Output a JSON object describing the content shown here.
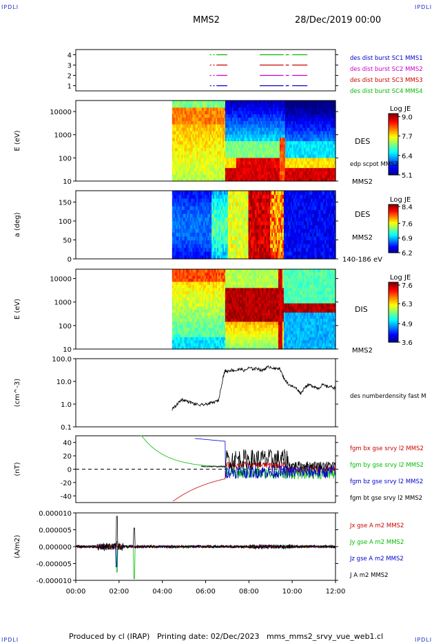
{
  "header": {
    "corner_label": "IPDLI",
    "spacecraft": "MMS2",
    "datetime": "28/Dec/2019 00:00"
  },
  "footer": {
    "text": "Produced by cl (IRAP)   Printing date: 02/Dec/2023   mms_mms2_srvy_vue_web1.cl"
  },
  "chart_data": [
    {
      "type": "scatter",
      "panel": "burst-availability",
      "xlim": [
        0,
        12
      ],
      "ylim": [
        0.5,
        4.5
      ],
      "yticks": [
        "1",
        "2",
        "3",
        "4"
      ],
      "legend": [
        {
          "label": "des dist burst SC1 MMS1",
          "color": "#0000cc"
        },
        {
          "label": "des dist burst SC2 MMS2",
          "color": "#cc00cc"
        },
        {
          "label": "des dist burst SC3 MMS3",
          "color": "#cc0000"
        },
        {
          "label": "des dist burst SC4 MMS4",
          "color": "#00bb00"
        }
      ],
      "series": [
        {
          "y": 4,
          "color": "#00bb00",
          "intervals": [
            [
              6.2,
              6.25
            ],
            [
              6.35,
              6.35
            ],
            [
              6.5,
              7.0
            ],
            [
              8.5,
              9.6
            ],
            [
              9.7,
              9.85
            ],
            [
              10.0,
              10.7
            ]
          ]
        },
        {
          "y": 3,
          "color": "#cc0000",
          "intervals": [
            [
              6.2,
              6.25
            ],
            [
              6.35,
              6.35
            ],
            [
              6.5,
              7.0
            ],
            [
              8.5,
              9.6
            ],
            [
              9.7,
              9.85
            ],
            [
              10.0,
              10.7
            ]
          ]
        },
        {
          "y": 2,
          "color": "#cc00cc",
          "intervals": [
            [
              6.2,
              6.25
            ],
            [
              6.35,
              6.35
            ],
            [
              6.5,
              7.0
            ],
            [
              8.5,
              9.6
            ],
            [
              9.7,
              9.85
            ],
            [
              10.0,
              10.7
            ]
          ]
        },
        {
          "y": 1,
          "color": "#0000cc",
          "intervals": [
            [
              6.2,
              6.25
            ],
            [
              6.35,
              6.35
            ],
            [
              6.5,
              7.0
            ],
            [
              8.5,
              9.6
            ],
            [
              9.7,
              9.85
            ],
            [
              10.0,
              10.7
            ]
          ]
        }
      ]
    },
    {
      "type": "heatmap",
      "panel": "des-energy",
      "ylabel": "E (eV)",
      "ylog": true,
      "ylim": [
        10,
        30000
      ],
      "yticks": [
        "10",
        "100",
        "1000",
        "10000"
      ],
      "data_start": 4.45,
      "label_right": "DES",
      "extra_label": "edp scpot MMS2",
      "spacecraft_label": "MMS2",
      "colorbar": {
        "title": "Log JE",
        "ticks": [
          "9.0",
          "7.7",
          "6.4",
          "5.1"
        ],
        "min": 5.1,
        "max": 9.2
      }
    },
    {
      "type": "heatmap",
      "panel": "des-pitch-angle",
      "ylabel": "a (deg)",
      "ylim": [
        0,
        180
      ],
      "yticks": [
        "0",
        "50",
        "100",
        "150"
      ],
      "data_start": 4.45,
      "label_right": "DES",
      "spacecraft_label": "MMS2",
      "energy_label": "140-186 eV",
      "colorbar": {
        "title": "Log JE",
        "ticks": [
          "8.4",
          "7.6",
          "6.9",
          "6.2"
        ],
        "min": 6.2,
        "max": 8.5
      }
    },
    {
      "type": "heatmap",
      "panel": "dis-energy",
      "ylabel": "E (eV)",
      "ylog": true,
      "ylim": [
        10,
        25000
      ],
      "yticks": [
        "10",
        "100",
        "1000",
        "10000"
      ],
      "data_start": 4.45,
      "label_right": "DIS",
      "spacecraft_label": "MMS2",
      "colorbar": {
        "title": "Log JE",
        "ticks": [
          "7.6",
          "6.3",
          "4.9",
          "3.6"
        ],
        "min": 3.6,
        "max": 7.8
      }
    },
    {
      "type": "line",
      "panel": "density",
      "ylabel": "(cm^-3)",
      "ylog": true,
      "ylim": [
        0.1,
        100
      ],
      "yticks": [
        "0.1",
        "1.0",
        "10.0",
        "100.0"
      ],
      "legend": [
        {
          "label": "des numberdensity fast M",
          "color": "#000000"
        }
      ],
      "series": [
        {
          "name": "des numberdensity fast M",
          "color": "#000000",
          "x": [
            4.45,
            4.6,
            4.75,
            4.9,
            5.1,
            5.3,
            5.5,
            5.8,
            6.0,
            6.2,
            6.4,
            6.6,
            6.8,
            6.9,
            7.0,
            7.2,
            7.4,
            7.6,
            7.8,
            8.0,
            8.2,
            8.4,
            8.6,
            8.8,
            9.0,
            9.2,
            9.4,
            9.6,
            9.8,
            10.0,
            10.2,
            10.4,
            10.6,
            10.8,
            11.0,
            11.2,
            11.4,
            11.6,
            11.8,
            12.0
          ],
          "y": [
            0.6,
            0.8,
            1.2,
            1.6,
            1.4,
            1.2,
            1.0,
            0.9,
            1.0,
            1.1,
            1.2,
            1.5,
            15,
            30,
            28,
            32,
            30,
            35,
            30,
            40,
            35,
            38,
            30,
            40,
            45,
            35,
            40,
            15,
            8,
            6,
            5,
            3,
            6,
            7,
            6,
            5,
            7,
            6,
            6,
            5
          ]
        }
      ]
    },
    {
      "type": "line",
      "panel": "magnetic-field",
      "ylabel": "(nT)",
      "ylim": [
        -50,
        50
      ],
      "yticks": [
        "-40",
        "-20",
        "0",
        "20",
        "40"
      ],
      "legend": [
        {
          "label": "fgm bx gse srvy l2 MMS2",
          "color": "#cc0000"
        },
        {
          "label": "fgm by gse srvy l2 MMS2",
          "color": "#00bb00"
        },
        {
          "label": "fgm bz gse srvy l2 MMS2",
          "color": "#0000cc"
        },
        {
          "label": "fgm bt gse srvy l2 MMS2",
          "color": "#000000"
        }
      ]
    },
    {
      "type": "line",
      "panel": "current-density",
      "ylabel": "(A/m2)",
      "ylim": [
        -1e-05,
        1e-05
      ],
      "yticks": [
        "-0.000010",
        "-0.000005",
        "0.000000",
        "0.000005",
        "0.000010"
      ],
      "xticks": [
        "00:00",
        "02:00",
        "04:00",
        "06:00",
        "08:00",
        "10:00",
        "12:00"
      ],
      "xlim": [
        0,
        12
      ],
      "legend": [
        {
          "label": "Jx gse A m2 MMS2",
          "color": "#cc0000"
        },
        {
          "label": "Jy gse A m2 MMS2",
          "color": "#00bb00"
        },
        {
          "label": "Jz gse A m2 MMS2",
          "color": "#0000cc"
        },
        {
          "label": "J A m2 MMS2",
          "color": "#000000"
        }
      ]
    }
  ]
}
